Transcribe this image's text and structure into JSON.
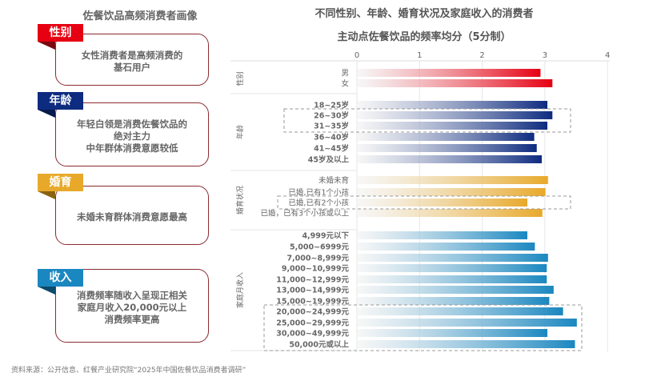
{
  "left_panel": {
    "title": "佐餐饮品高频消费者画像",
    "cards": [
      {
        "tag": "性别",
        "color": "#e60012",
        "shadow": "#7a0a10",
        "text": "女性消费者是高频消费的\n基石用户"
      },
      {
        "tag": "年龄",
        "color": "#0d2b7f",
        "shadow": "#071a4d",
        "text": "年轻白领是消费佐餐饮品的\n绝对主力\n中年群体消费意愿较低"
      },
      {
        "tag": "婚育",
        "color": "#e8a92a",
        "shadow": "#8a6210",
        "text": "未婚未育群体消费意愿最高"
      },
      {
        "tag": "收入",
        "color": "#1a87c0",
        "shadow": "#0d4a6b",
        "text": "消费频率随收入呈现正相关\n家庭月收入20,000元以上\n消费频率更高"
      }
    ]
  },
  "chart_data": {
    "type": "bar",
    "orientation": "horizontal",
    "title": [
      "不同性别、年龄、婚育状况及家庭收入的消费者",
      "主动点佐餐饮品的频率均分（5分制）"
    ],
    "xlim": [
      0,
      4
    ],
    "xticks": [
      "0",
      "1",
      "2",
      "3",
      "4"
    ],
    "grid": true,
    "groups": [
      {
        "name": "性别",
        "color": "#e60012",
        "categories": [
          "男",
          "女"
        ],
        "values": [
          2.93,
          3.12
        ],
        "highlight": []
      },
      {
        "name": "年龄",
        "color": "#0d2b7f",
        "categories": [
          "18~25岁",
          "26~30岁",
          "31~35岁",
          "36~40岁",
          "41~45岁",
          "45岁及以上"
        ],
        "values": [
          3.04,
          3.12,
          3.04,
          2.83,
          2.87,
          2.95
        ],
        "highlight": [
          "26~30岁",
          "31~35岁"
        ]
      },
      {
        "name": "婚育状况",
        "color": "#e8a92a",
        "categories": [
          "未婚未育",
          "已婚,已有1个小孩",
          "已婚,已有2个小孩",
          "已婚，已有3个小孩或以上"
        ],
        "values": [
          3.05,
          3.01,
          2.72,
          2.96
        ],
        "highlight": [
          "已婚,已有2个小孩"
        ]
      },
      {
        "name": "家庭月收入",
        "color": "#1a87c0",
        "categories": [
          "4,999元以下",
          "5,000~6999元",
          "7,000~8,999元",
          "9,000~10,999元",
          "11,000~12,999元",
          "13,000~14,999元",
          "15,000~19,999元",
          "20,000~24,999元",
          "25,000~29,999元",
          "30,000~49,999元",
          "50,000元或以上"
        ],
        "values": [
          2.72,
          2.84,
          3.05,
          3.03,
          3.03,
          3.14,
          3.07,
          3.29,
          3.51,
          3.04,
          3.48
        ],
        "highlight": [
          "20,000~24,999元",
          "25,000~29,999元",
          "30,000~49,999元",
          "50,000元或以上"
        ]
      }
    ]
  },
  "source": "资料来源：公开信息、红餐产业研究院“2025年中国佐餐饮品消费者调研”"
}
